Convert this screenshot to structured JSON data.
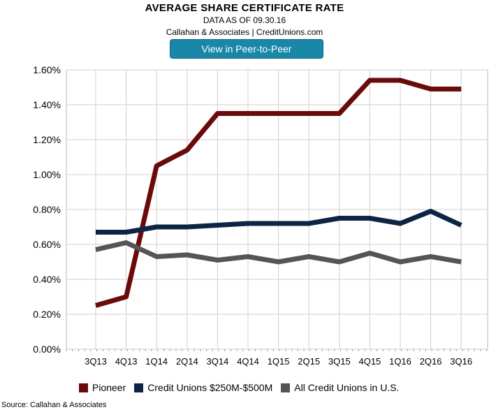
{
  "header": {
    "title": "AVERAGE SHARE CERTIFICATE RATE",
    "subtitle": "DATA AS OF 09.30.16",
    "byline": "Callahan & Associates | CreditUnions.com",
    "button_label": "View in Peer-to-Peer"
  },
  "source": "Source: Callahan & Associates",
  "chart_data": {
    "type": "line",
    "title": "AVERAGE SHARE CERTIFICATE RATE",
    "xlabel": "",
    "ylabel": "",
    "categories": [
      "3Q13",
      "4Q13",
      "1Q14",
      "2Q14",
      "3Q14",
      "4Q14",
      "1Q15",
      "2Q15",
      "3Q15",
      "4Q15",
      "1Q16",
      "2Q16",
      "3Q16"
    ],
    "ylim": [
      0,
      1.6
    ],
    "yticks": [
      "0.00%",
      "0.20%",
      "0.40%",
      "0.60%",
      "0.80%",
      "1.00%",
      "1.20%",
      "1.40%",
      "1.60%"
    ],
    "grid": true,
    "legend": "bottom",
    "series": [
      {
        "name": "Pioneer",
        "color": "#6b0a0a",
        "values": [
          0.25,
          0.3,
          1.05,
          1.14,
          1.35,
          1.35,
          1.35,
          1.35,
          1.35,
          1.54,
          1.54,
          1.49,
          1.49
        ]
      },
      {
        "name": "Credit Unions $250M-$500M",
        "color": "#0d2545",
        "values": [
          0.67,
          0.67,
          0.7,
          0.7,
          0.71,
          0.72,
          0.72,
          0.72,
          0.75,
          0.75,
          0.72,
          0.79,
          0.71
        ]
      },
      {
        "name": "All Credit Unions in U.S.",
        "color": "#555555",
        "values": [
          0.57,
          0.61,
          0.53,
          0.54,
          0.51,
          0.53,
          0.5,
          0.53,
          0.5,
          0.55,
          0.5,
          0.53,
          0.5
        ]
      }
    ]
  }
}
